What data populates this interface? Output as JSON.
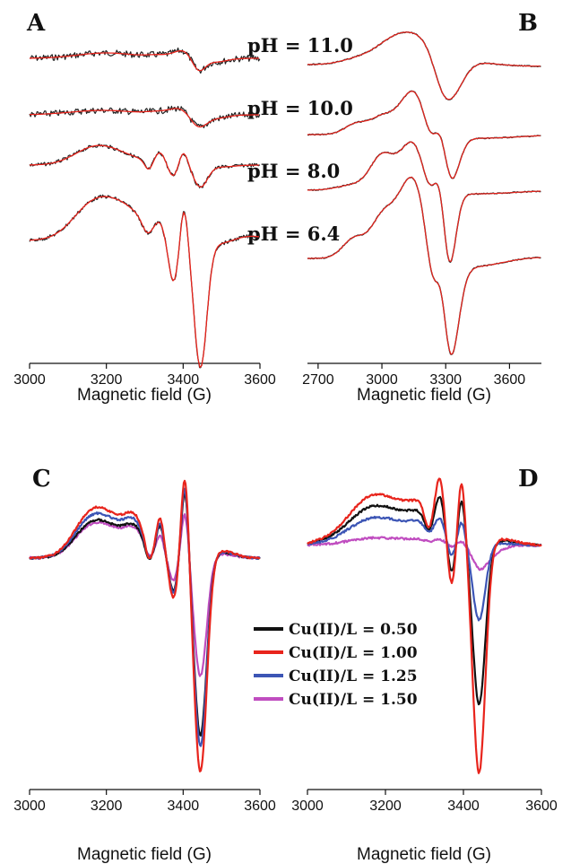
{
  "figure": {
    "x_axis_label": "Magnetic field (G)"
  },
  "panels": {
    "A": {
      "letter": "A"
    },
    "B": {
      "letter": "B"
    },
    "C": {
      "letter": "C"
    },
    "D": {
      "letter": "D"
    }
  },
  "legend": {
    "entries": [
      "Cu(II)/L = 0.50",
      "Cu(II)/L = 1.00",
      "Cu(II)/L = 1.25",
      "Cu(II)/L = 1.50"
    ],
    "colors": [
      "#111111",
      "#e8241c",
      "#3c55b5",
      "#c04dc0"
    ]
  },
  "colors": {
    "experimental": "#222222",
    "simulated": "#e8241c",
    "ratio_0_50": "#111111",
    "ratio_1_00": "#e8241c",
    "ratio_1_25": "#3c55b5",
    "ratio_1_50": "#c04dc0"
  },
  "chart_data": [
    {
      "panel": "A",
      "type": "line",
      "xlabel": "Magnetic field (G)",
      "xlim": [
        3000,
        3600
      ],
      "xticks": [
        3000,
        3200,
        3400,
        3600
      ],
      "y_axis": "none (stacked spectra, arbitrary units)",
      "series": [
        {
          "name": "pH = 11.0",
          "lines": [
            "experimental",
            "simulated"
          ],
          "approx_features_G": [
            3390,
            3445,
            3480
          ]
        },
        {
          "name": "pH = 10.0",
          "lines": [
            "experimental",
            "simulated"
          ],
          "approx_features_G": [
            3390,
            3440
          ]
        },
        {
          "name": "pH = 8.0",
          "lines": [
            "experimental",
            "simulated"
          ],
          "approx_features_G": [
            3330,
            3380,
            3445
          ]
        },
        {
          "name": "pH = 6.4",
          "lines": [
            "experimental",
            "simulated"
          ],
          "approx_features_G": [
            3210,
            3310,
            3370,
            3405,
            3445
          ]
        }
      ]
    },
    {
      "panel": "B",
      "type": "line",
      "xlabel": "Magnetic field (G)",
      "xlim": [
        2650,
        3750
      ],
      "xticks": [
        2700,
        3000,
        3300,
        3600
      ],
      "y_axis": "none (stacked spectra, arbitrary units)",
      "series": [
        {
          "lines": [
            "experimental",
            "simulated"
          ],
          "approx_features_G": [
            3050,
            3150,
            3310
          ]
        },
        {
          "lines": [
            "experimental",
            "simulated"
          ],
          "approx_features_G": [
            2880,
            3000,
            3150,
            3280,
            3310
          ]
        },
        {
          "lines": [
            "experimental",
            "simulated"
          ],
          "approx_features_G": [
            3000,
            3150,
            3280,
            3310
          ]
        },
        {
          "lines": [
            "experimental",
            "simulated"
          ],
          "approx_features_G": [
            2870,
            3000,
            3140,
            3250,
            3280,
            3320
          ]
        }
      ]
    },
    {
      "panel": "C",
      "type": "line",
      "xlabel": "Magnetic field (G)",
      "xlim": [
        3000,
        3600
      ],
      "xticks": [
        3000,
        3200,
        3400,
        3600
      ],
      "series": [
        {
          "name": "Cu(II)/L = 0.50",
          "peak_min_G": 3440,
          "relative_min": -0.83
        },
        {
          "name": "Cu(II)/L = 1.00",
          "peak_min_G": 3440,
          "relative_min": -1.0
        },
        {
          "name": "Cu(II)/L = 1.25",
          "peak_min_G": 3440,
          "relative_min": -0.88
        },
        {
          "name": "Cu(II)/L = 1.50",
          "peak_min_G": 3440,
          "relative_min": -0.55
        }
      ]
    },
    {
      "panel": "D",
      "type": "line",
      "xlabel": "Magnetic field (G)",
      "xlim": [
        3000,
        3600
      ],
      "xticks": [
        3000,
        3200,
        3400,
        3600
      ],
      "series": [
        {
          "name": "Cu(II)/L = 0.50",
          "peak_min_G": 3440,
          "relative_min": -0.7
        },
        {
          "name": "Cu(II)/L = 1.00",
          "peak_min_G": 3440,
          "relative_min": -1.0
        },
        {
          "name": "Cu(II)/L = 1.25",
          "peak_min_G": 3440,
          "relative_min": -0.32
        },
        {
          "name": "Cu(II)/L = 1.50",
          "peak_min_G": 3460,
          "relative_min": -0.06
        }
      ]
    }
  ]
}
